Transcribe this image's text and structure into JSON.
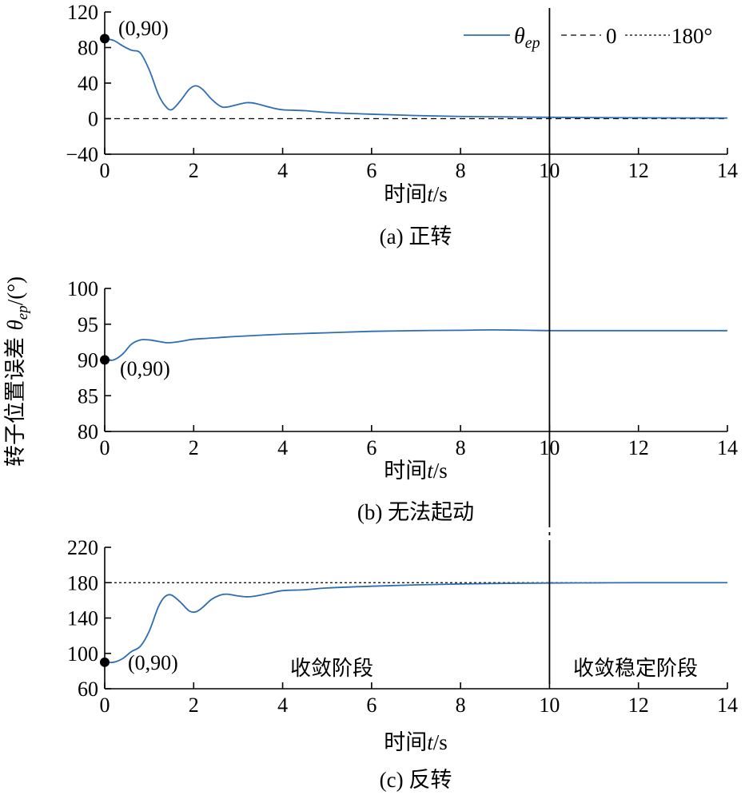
{
  "y_axis_label": {
    "prefix": "转子位置误差 ",
    "symbol": "θ",
    "sub": "ep",
    "unit": "/(°)"
  },
  "legend": {
    "series_symbol": "θ",
    "series_sub": "ep",
    "ref0_label": "0",
    "ref180_label": "180°"
  },
  "colors": {
    "series": "#2e6db4",
    "reference": "#000000"
  },
  "chart_data": [
    {
      "type": "line",
      "caption": "(a) 正转",
      "xlabel_prefix": "时间",
      "xlabel_var": "t",
      "xlabel_unit": "/s",
      "xlim": [
        0,
        14
      ],
      "ylim": [
        -40,
        120
      ],
      "xticks": [
        0,
        2,
        4,
        6,
        8,
        10,
        12,
        14
      ],
      "yticks": [
        -40,
        0,
        40,
        80,
        120
      ],
      "reference_line": {
        "value": 0,
        "style": "dashed"
      },
      "start_point": {
        "x": 0,
        "y": 90,
        "label": "(0,90)"
      },
      "series": [
        {
          "x": [
            0,
            0.2,
            0.4,
            0.6,
            0.8,
            1.0,
            1.2,
            1.35,
            1.5,
            1.7,
            1.9,
            2.05,
            2.2,
            2.4,
            2.6,
            2.75,
            3.0,
            3.2,
            3.4,
            3.7,
            4.0,
            4.5,
            5.0,
            6.0,
            7.0,
            8.0,
            9.0,
            10.0,
            11.0,
            12.0,
            13.0,
            14.0
          ],
          "y": [
            90,
            88,
            82,
            77,
            74,
            55,
            28,
            15,
            10,
            20,
            33,
            37,
            33,
            22,
            14,
            13,
            16,
            18,
            17,
            13,
            10,
            9,
            7,
            5,
            3.5,
            2.5,
            2,
            1.5,
            1.2,
            1,
            0.8,
            0.7
          ]
        }
      ]
    },
    {
      "type": "line",
      "caption": "(b) 无法起动",
      "xlabel_prefix": "时间",
      "xlabel_var": "t",
      "xlabel_unit": "/s",
      "xlim": [
        0,
        14
      ],
      "ylim": [
        80,
        100
      ],
      "xticks": [
        0,
        2,
        4,
        6,
        8,
        10,
        12,
        14
      ],
      "yticks": [
        80,
        85,
        90,
        95,
        100
      ],
      "start_point": {
        "x": 0,
        "y": 90,
        "label": "(0,90)"
      },
      "series": [
        {
          "x": [
            0,
            0.2,
            0.4,
            0.6,
            0.8,
            1.0,
            1.2,
            1.4,
            1.6,
            1.8,
            2.0,
            2.5,
            3.0,
            4.0,
            5.0,
            6.0,
            7.0,
            8.0,
            8.7,
            9.5,
            10.0,
            11.0,
            12.0,
            13.0,
            14.0
          ],
          "y": [
            90,
            90,
            90.8,
            92.2,
            92.8,
            92.8,
            92.6,
            92.4,
            92.5,
            92.7,
            92.9,
            93.1,
            93.3,
            93.6,
            93.8,
            94.0,
            94.1,
            94.15,
            94.2,
            94.15,
            94.1,
            94.1,
            94.1,
            94.1,
            94.1
          ]
        }
      ]
    },
    {
      "type": "line",
      "caption": "(c) 反转",
      "xlabel_prefix": "时间",
      "xlabel_var": "t",
      "xlabel_unit": "/s",
      "xlim": [
        0,
        14
      ],
      "ylim": [
        60,
        220
      ],
      "xticks": [
        0,
        2,
        4,
        6,
        8,
        10,
        12,
        14
      ],
      "yticks": [
        60,
        100,
        140,
        180,
        220
      ],
      "reference_line": {
        "value": 180,
        "style": "dotted"
      },
      "start_point": {
        "x": 0,
        "y": 90,
        "label": "(0,90)"
      },
      "stage_labels": [
        "收敛阶段",
        "收敛稳定阶段"
      ],
      "series": [
        {
          "x": [
            0,
            0.2,
            0.4,
            0.6,
            0.8,
            1.0,
            1.2,
            1.35,
            1.5,
            1.7,
            1.9,
            2.05,
            2.2,
            2.4,
            2.6,
            2.75,
            3.0,
            3.2,
            3.4,
            3.7,
            4.0,
            4.5,
            5.0,
            6.0,
            7.0,
            8.0,
            9.0,
            10.0,
            11.0,
            12.0,
            13.0,
            14.0
          ],
          "y": [
            90,
            90,
            94,
            102,
            108,
            125,
            152,
            164,
            166,
            158,
            148,
            147,
            152,
            161,
            166,
            167,
            165,
            164,
            165,
            168,
            171,
            172,
            174,
            176,
            177.5,
            178.5,
            179.2,
            179.6,
            179.8,
            180,
            180,
            180
          ]
        }
      ]
    }
  ],
  "stage_divider_x": 10
}
